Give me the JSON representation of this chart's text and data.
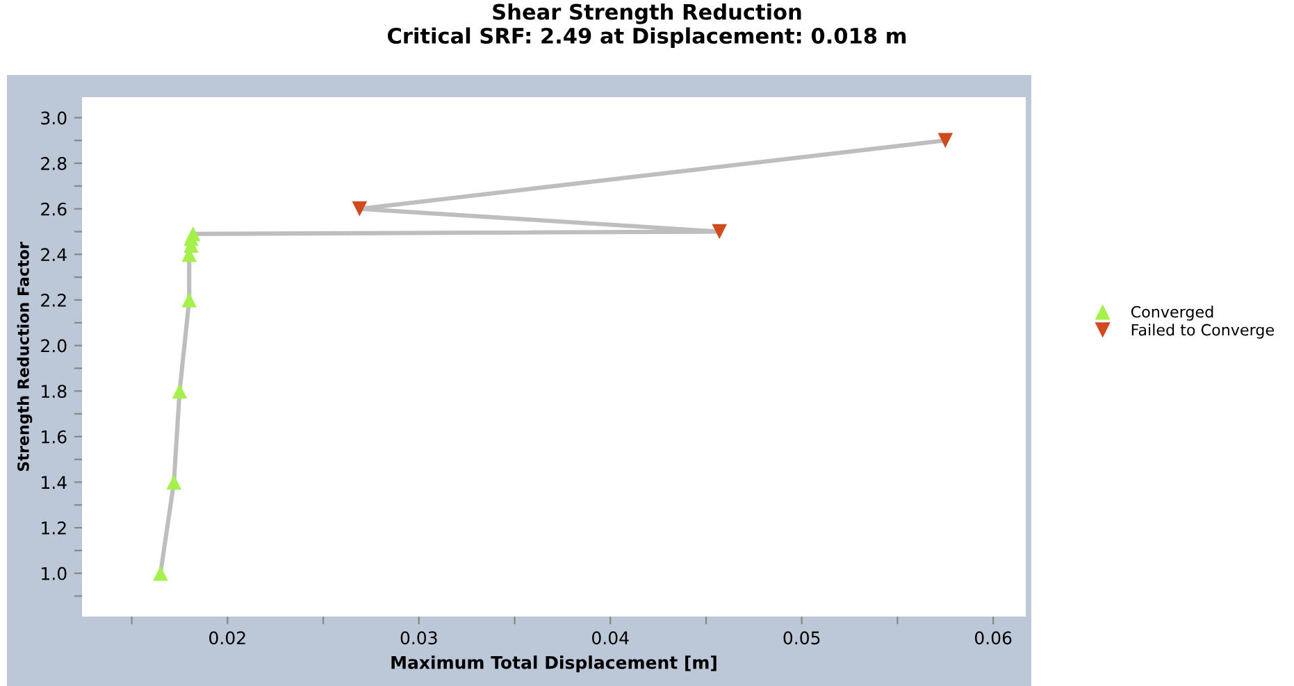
{
  "chart_data": {
    "type": "line",
    "title": "Shear Strength Reduction\nCritical SRF: 2.49 at Displacement: 0.018 m",
    "xlabel": "Maximum Total Displacement [m]",
    "ylabel": "Strength Reduction Factor",
    "series": [
      {
        "color": "#bebebe",
        "marker": "none",
        "x": [
          0.0165,
          0.0172,
          0.0175,
          0.018,
          0.018,
          0.0181,
          0.0181,
          0.0182,
          0.0457,
          0.0269,
          0.0575
        ],
        "values": [
          1.0,
          1.4,
          1.8,
          2.2,
          2.4,
          2.44,
          2.47,
          2.49,
          2.5,
          2.6,
          2.9
        ]
      },
      {
        "type": "scatter",
        "name": "Converged",
        "color": "#a5f04a",
        "marker": "triangle",
        "x": [
          0.0165,
          0.0172,
          0.0175,
          0.018,
          0.018,
          0.0181,
          0.0181,
          0.0182
        ],
        "values": [
          1.0,
          1.4,
          1.8,
          2.2,
          2.4,
          2.44,
          2.47,
          2.49
        ]
      },
      {
        "type": "scatter",
        "name": "Failed to Converge",
        "color": "#d04a1e",
        "marker": "triangle_down",
        "x": [
          0.0457,
          0.0269,
          0.0575
        ],
        "values": [
          2.5,
          2.6,
          2.9
        ]
      }
    ],
    "xlim": [
      0.0124,
      0.0617
    ],
    "ylim": [
      0.81,
      3.09
    ],
    "xticks": [
      {
        "value": 0.015,
        "label": null
      },
      {
        "value": 0.02,
        "label": "0.02"
      },
      {
        "value": 0.025,
        "label": null
      },
      {
        "value": 0.03,
        "label": "0.03"
      },
      {
        "value": 0.035,
        "label": null
      },
      {
        "value": 0.04,
        "label": "0.04"
      },
      {
        "value": 0.045,
        "label": null
      },
      {
        "value": 0.05,
        "label": "0.05"
      },
      {
        "value": 0.055,
        "label": null
      },
      {
        "value": 0.06,
        "label": "0.06"
      }
    ],
    "yticks": [
      {
        "value": 0.9,
        "label": null
      },
      {
        "value": 1.0,
        "label": "1.0"
      },
      {
        "value": 1.1,
        "label": null
      },
      {
        "value": 1.2,
        "label": "1.2"
      },
      {
        "value": 1.3,
        "label": null
      },
      {
        "value": 1.4,
        "label": "1.4"
      },
      {
        "value": 1.5,
        "label": null
      },
      {
        "value": 1.6,
        "label": "1.6"
      },
      {
        "value": 1.7,
        "label": null
      },
      {
        "value": 1.8,
        "label": "1.8"
      },
      {
        "value": 1.9,
        "label": null
      },
      {
        "value": 2.0,
        "label": "2.0"
      },
      {
        "value": 2.1,
        "label": null
      },
      {
        "value": 2.2,
        "label": "2.2"
      },
      {
        "value": 2.3,
        "label": null
      },
      {
        "value": 2.4,
        "label": "2.4"
      },
      {
        "value": 2.5,
        "label": null
      },
      {
        "value": 2.6,
        "label": "2.6"
      },
      {
        "value": 2.7,
        "label": null
      },
      {
        "value": 2.8,
        "label": "2.8"
      },
      {
        "value": 2.9,
        "label": null
      },
      {
        "value": 3.0,
        "label": "3.0"
      }
    ],
    "grid": false,
    "legend": "right"
  }
}
